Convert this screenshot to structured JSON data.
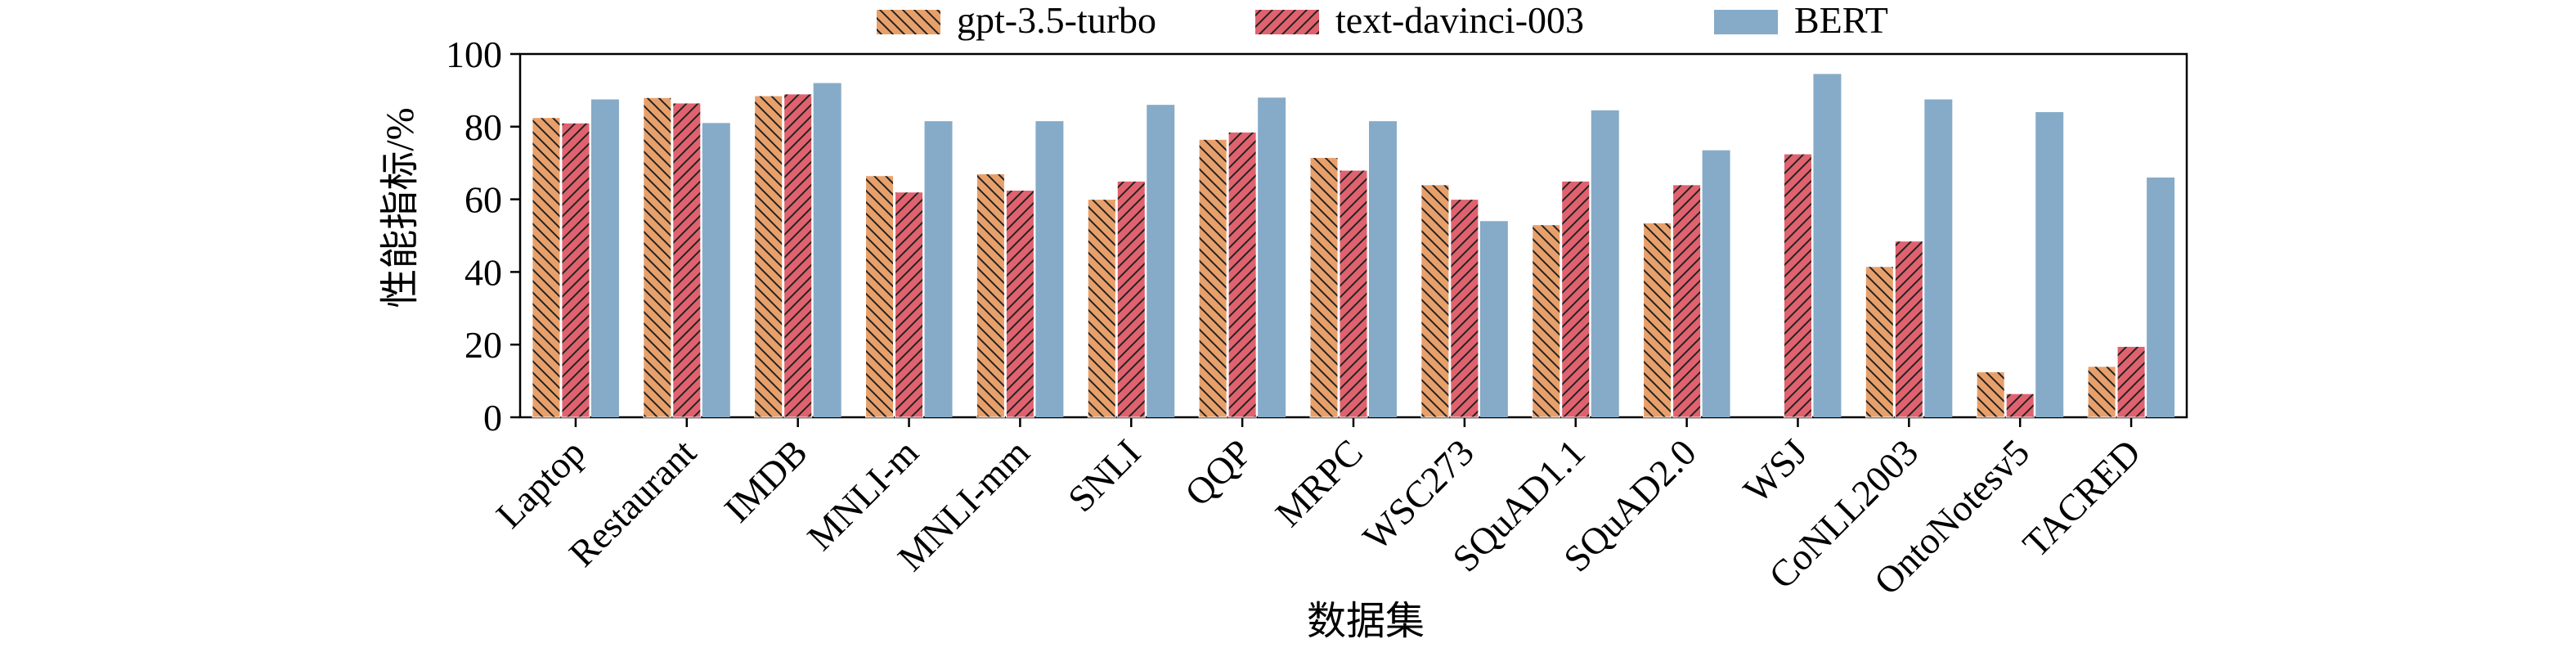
{
  "chart_data": {
    "type": "bar",
    "title": "",
    "xlabel": "数据集",
    "ylabel": "性能指标/%",
    "ylim": [
      0,
      100
    ],
    "yticks": [
      0,
      20,
      40,
      60,
      80,
      100
    ],
    "legend_position": "top-center",
    "grid": false,
    "categories": [
      "Laptop",
      "Restaurant",
      "IMDB",
      "MNLI-m",
      "MNLI-mm",
      "SNLI",
      "QQP",
      "MRPC",
      "WSC273",
      "SQuAD1.1",
      "SQuAD2.0",
      "WSJ",
      "CoNLL2003",
      "OntoNotesv5",
      "TACRED"
    ],
    "series": [
      {
        "name": "gpt-3.5-turbo",
        "color": "#E8A06B",
        "pattern": "backslash-hatch",
        "values": [
          82.5,
          88,
          88.5,
          66.5,
          67,
          60,
          76.5,
          71.5,
          64,
          53,
          53.5,
          null,
          41.5,
          12.5,
          14
        ]
      },
      {
        "name": "text-davinci-003",
        "color": "#E0626E",
        "pattern": "slash-hatch",
        "values": [
          81,
          86.5,
          89,
          62,
          62.5,
          65,
          78.5,
          68,
          60,
          65,
          64,
          72.5,
          48.5,
          6.5,
          19.5
        ]
      },
      {
        "name": "BERT",
        "color": "#86ABC8",
        "pattern": "solid",
        "values": [
          87.5,
          81,
          92,
          81.5,
          81.5,
          86,
          88,
          81.5,
          54,
          84.5,
          73.5,
          94.5,
          87.5,
          84,
          66
        ]
      }
    ]
  }
}
